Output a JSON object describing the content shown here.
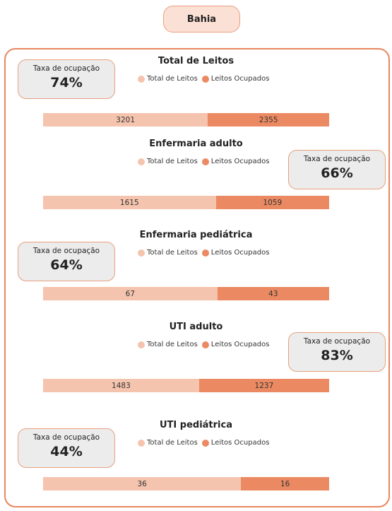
{
  "header": {
    "title": "Bahia"
  },
  "chart_data": [
    {
      "type": "bar",
      "title": "Total de Leitos",
      "series": [
        {
          "name": "Total de Leitos",
          "color": "#f5c4ae",
          "values": [
            3201
          ]
        },
        {
          "name": "Leitos Ocupados",
          "color": "#eb8a62",
          "values": [
            2355
          ]
        }
      ],
      "occupancy": {
        "label": "Taxa de ocupação",
        "value": 74,
        "value_label": "74%"
      }
    },
    {
      "type": "bar",
      "title": "Enfermaria adulto",
      "series": [
        {
          "name": "Total de Leitos",
          "color": "#f5c4ae",
          "values": [
            1615
          ]
        },
        {
          "name": "Leitos Ocupados",
          "color": "#eb8a62",
          "values": [
            1059
          ]
        }
      ],
      "occupancy": {
        "label": "Taxa de ocupação",
        "value": 66,
        "value_label": "66%"
      }
    },
    {
      "type": "bar",
      "title": "Enfermaria pediátrica",
      "series": [
        {
          "name": "Total de Leitos",
          "color": "#f5c4ae",
          "values": [
            67
          ]
        },
        {
          "name": "Leitos Ocupados",
          "color": "#eb8a62",
          "values": [
            43
          ]
        }
      ],
      "occupancy": {
        "label": "Taxa de ocupação",
        "value": 64,
        "value_label": "64%"
      }
    },
    {
      "type": "bar",
      "title": "UTI adulto",
      "series": [
        {
          "name": "Total de Leitos",
          "color": "#f5c4ae",
          "values": [
            1483
          ]
        },
        {
          "name": "Leitos Ocupados",
          "color": "#eb8a62",
          "values": [
            1237
          ]
        }
      ],
      "occupancy": {
        "label": "Taxa de ocupação",
        "value": 83,
        "value_label": "83%"
      }
    },
    {
      "type": "bar",
      "title": "UTI pediátrica",
      "series": [
        {
          "name": "Total de Leitos",
          "color": "#f5c4ae",
          "values": [
            36
          ]
        },
        {
          "name": "Leitos Ocupados",
          "color": "#eb8a62",
          "values": [
            16
          ]
        }
      ],
      "occupancy": {
        "label": "Taxa de ocupação",
        "value": 44,
        "value_label": "44%"
      }
    }
  ]
}
